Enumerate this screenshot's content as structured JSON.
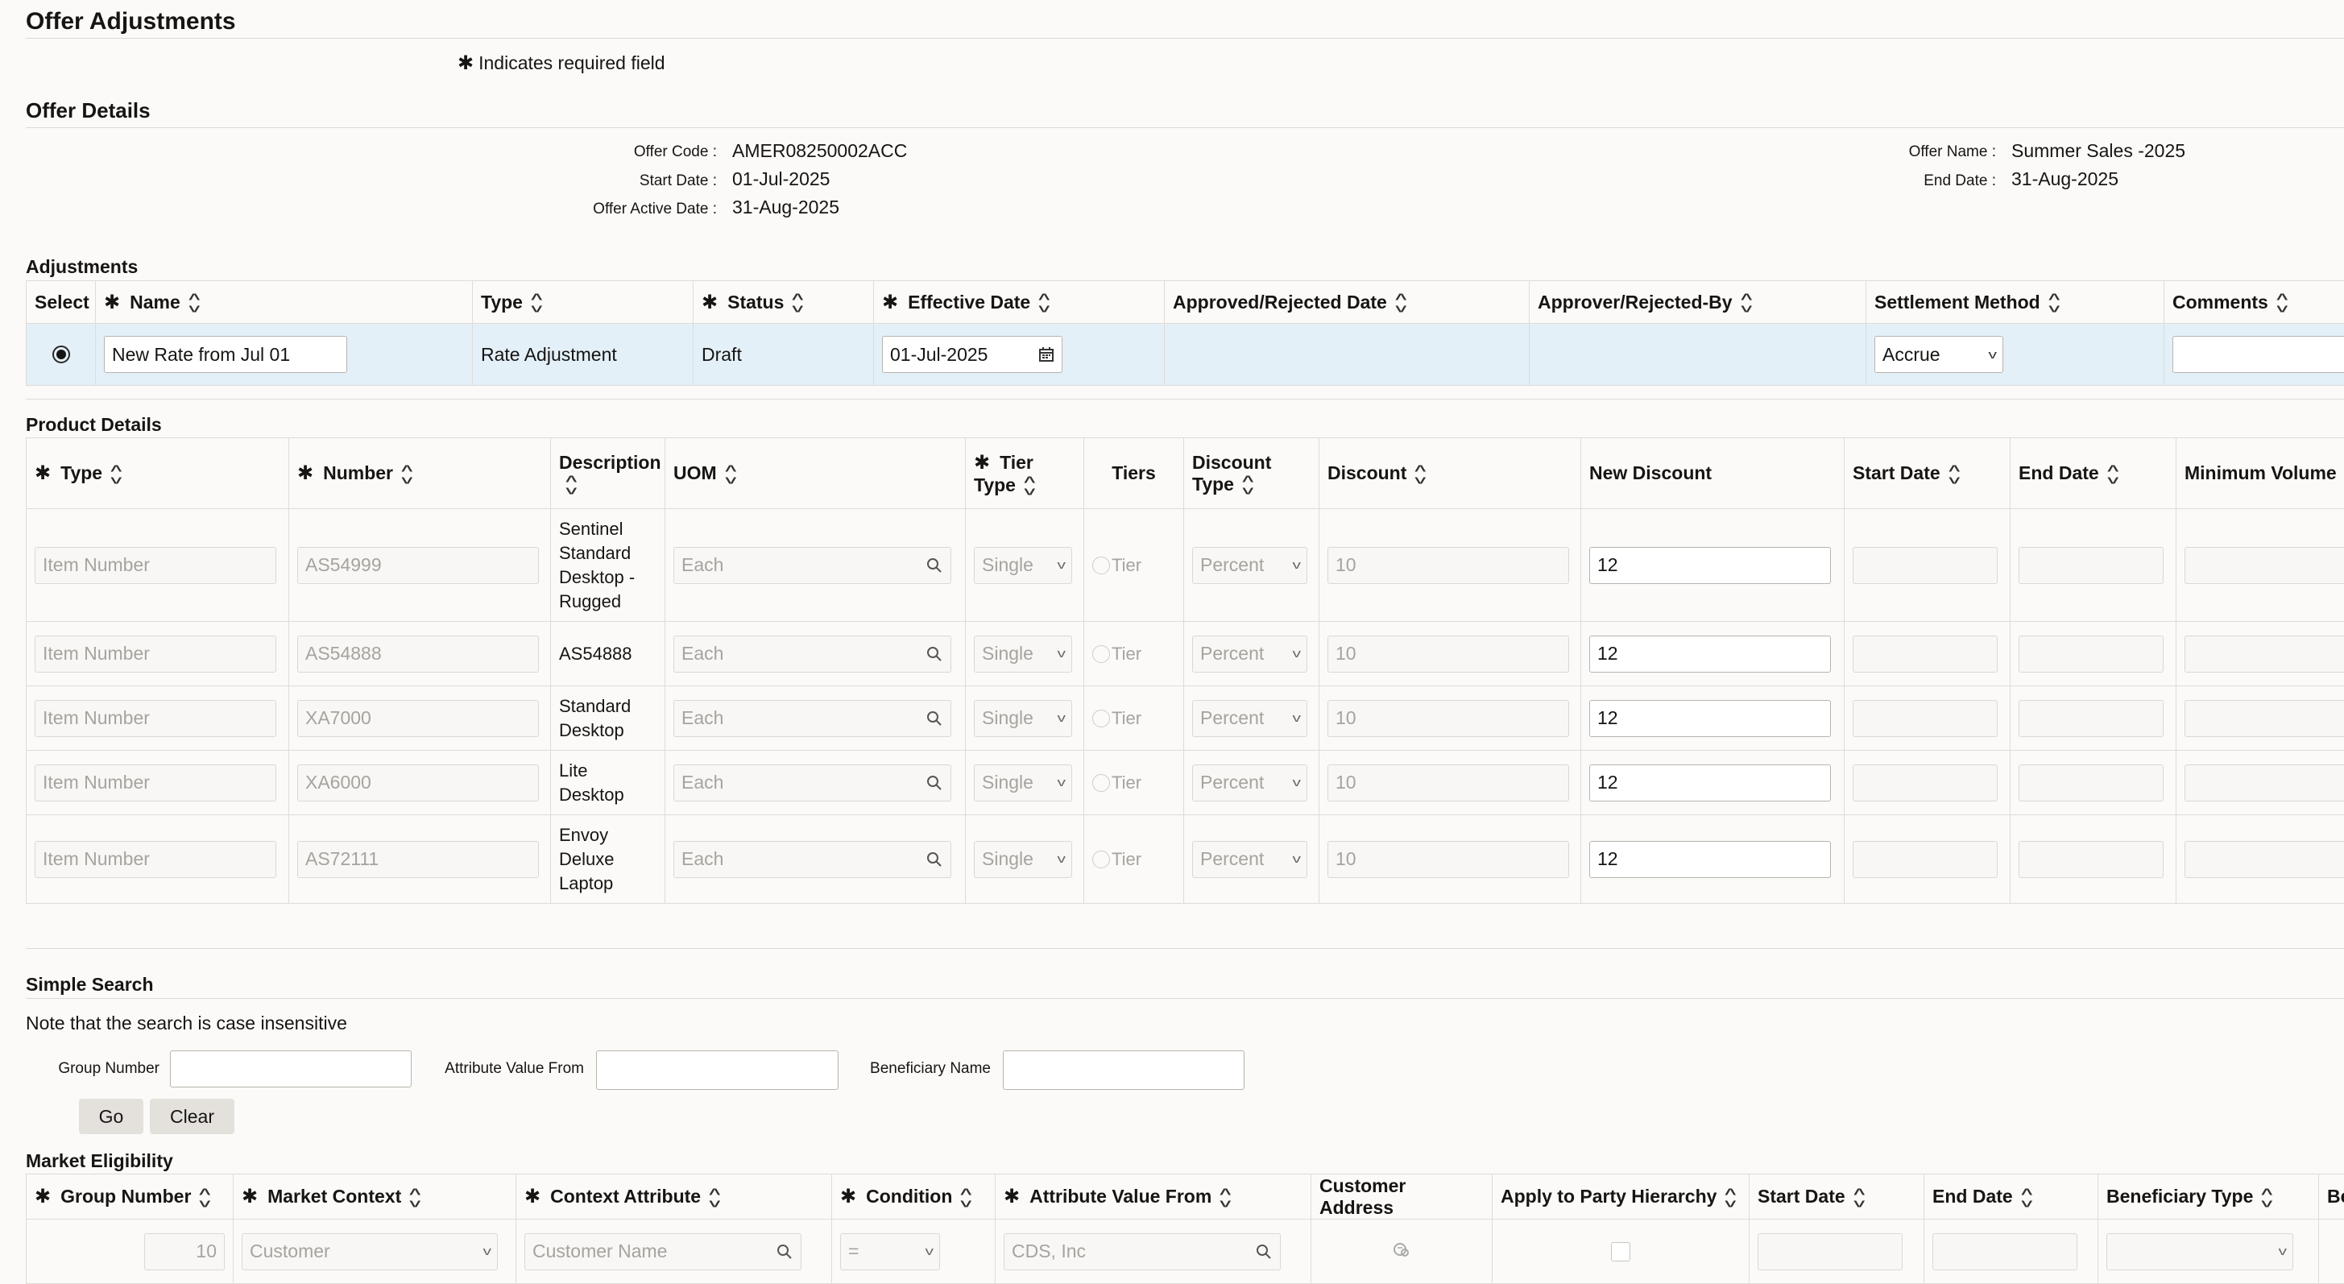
{
  "page": {
    "title": "Offer Adjustments",
    "required_note": "Indicates required field"
  },
  "offer_details": {
    "section_title": "Offer Details",
    "offer_code_label": "Offer Code :",
    "offer_code": "AMER08250002ACC",
    "start_date_label": "Start Date :",
    "start_date": "01-Jul-2025",
    "offer_active_date_label": "Offer Active Date :",
    "offer_active_date": "31-Aug-2025",
    "offer_name_label": "Offer Name :",
    "offer_name": "Summer Sales -2025",
    "end_date_label": "End Date :",
    "end_date": "31-Aug-2025"
  },
  "adjustments": {
    "section_title": "Adjustments",
    "columns": {
      "select": "Select",
      "name": "Name",
      "type": "Type",
      "status": "Status",
      "effective_date": "Effective Date",
      "approved_rejected_date": "Approved/Rejected Date",
      "approver": "Approver/Rejected-By",
      "settlement_method": "Settlement Method",
      "comments": "Comments"
    },
    "row": {
      "name": "New Rate from Jul 01",
      "type": "Rate Adjustment",
      "status": "Draft",
      "effective_date": "01-Jul-2025",
      "settlement_method": "Accrue",
      "comments": ""
    }
  },
  "product_details": {
    "section_title": "Product Details",
    "columns": {
      "type": "Type",
      "number": "Number",
      "description": "Description",
      "uom": "UOM",
      "tier_type_1": "Tier",
      "tier_type_2": "Type",
      "tiers": "Tiers",
      "discount_type_1": "Discount",
      "discount_type_2": "Type",
      "discount": "Discount",
      "new_discount": "New Discount",
      "start_date": "Start Date",
      "end_date": "End Date",
      "minimum_volume": "Minimum Volume"
    },
    "rows": [
      {
        "type": "Item Number",
        "number": "AS54999",
        "description": [
          "Sentinel",
          "Standard",
          "Desktop -",
          "Rugged"
        ],
        "uom": "Each",
        "tier_type": "Single",
        "tiers": "Tier",
        "discount_type": "Percent",
        "discount": "10",
        "new_discount": "12"
      },
      {
        "type": "Item Number",
        "number": "AS54888",
        "description": [
          "AS54888"
        ],
        "uom": "Each",
        "tier_type": "Single",
        "tiers": "Tier",
        "discount_type": "Percent",
        "discount": "10",
        "new_discount": "12"
      },
      {
        "type": "Item Number",
        "number": "XA7000",
        "description": [
          "Standard",
          "Desktop"
        ],
        "uom": "Each",
        "tier_type": "Single",
        "tiers": "Tier",
        "discount_type": "Percent",
        "discount": "10",
        "new_discount": "12"
      },
      {
        "type": "Item Number",
        "number": "XA6000",
        "description": [
          "Lite",
          "Desktop"
        ],
        "uom": "Each",
        "tier_type": "Single",
        "tiers": "Tier",
        "discount_type": "Percent",
        "discount": "10",
        "new_discount": "12"
      },
      {
        "type": "Item Number",
        "number": "AS72111",
        "description": [
          "Envoy",
          "Deluxe",
          "Laptop"
        ],
        "uom": "Each",
        "tier_type": "Single",
        "tiers": "Tier",
        "discount_type": "Percent",
        "discount": "10",
        "new_discount": "12"
      }
    ]
  },
  "simple_search": {
    "section_title": "Simple Search",
    "note": "Note that the search is case insensitive",
    "group_number_label": "Group Number",
    "attribute_value_from_label": "Attribute Value From",
    "beneficiary_name_label": "Beneficiary Name",
    "go_label": "Go",
    "clear_label": "Clear"
  },
  "market_eligibility": {
    "section_title": "Market Eligibility",
    "columns": {
      "group_number": "Group Number",
      "market_context": "Market Context",
      "context_attribute": "Context Attribute",
      "condition": "Condition",
      "attribute_value_from": "Attribute Value From",
      "customer_address": "Customer Address",
      "apply_to_party_hierarchy": "Apply to Party Hierarchy",
      "start_date": "Start Date",
      "end_date": "End Date",
      "beneficiary_type": "Beneficiary Type",
      "truncated": "Be"
    },
    "row": {
      "group_number": "10",
      "market_context": "Customer",
      "context_attribute": "Customer Name",
      "condition": "=",
      "attribute_value_from": "CDS, Inc"
    }
  },
  "icons": [
    "asterisk-icon",
    "sort-icon",
    "calendar-icon",
    "chevron-down-icon",
    "search-icon",
    "address-icon"
  ]
}
